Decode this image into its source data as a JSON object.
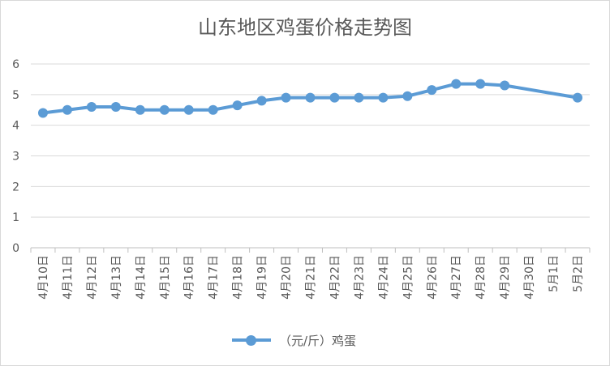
{
  "chart_data": {
    "type": "line",
    "title": "山东地区鸡蛋价格走势图",
    "categories": [
      "4月10日",
      "4月11日",
      "4月12日",
      "4月13日",
      "4月14日",
      "4月15日",
      "4月16日",
      "4月17日",
      "4月18日",
      "4月19日",
      "4月20日",
      "4月21日",
      "4月22日",
      "4月23日",
      "4月24日",
      "4月25日",
      "4月26日",
      "4月27日",
      "4月28日",
      "4月29日",
      "4月30日",
      "5月1日",
      "5月2日"
    ],
    "series": [
      {
        "name": "（元/斤）鸡蛋",
        "values": [
          4.4,
          4.5,
          4.6,
          4.6,
          4.5,
          4.5,
          4.5,
          4.5,
          4.65,
          4.8,
          4.9,
          4.9,
          4.9,
          4.9,
          4.9,
          4.95,
          5.15,
          5.35,
          5.35,
          5.3,
          null,
          null,
          4.9
        ],
        "color": "#5b9bd5"
      }
    ],
    "ylim": [
      0,
      6
    ],
    "yticks": [
      "0",
      "1",
      "2",
      "3",
      "4",
      "5",
      "6"
    ],
    "grid": true,
    "legend": "bottom"
  }
}
